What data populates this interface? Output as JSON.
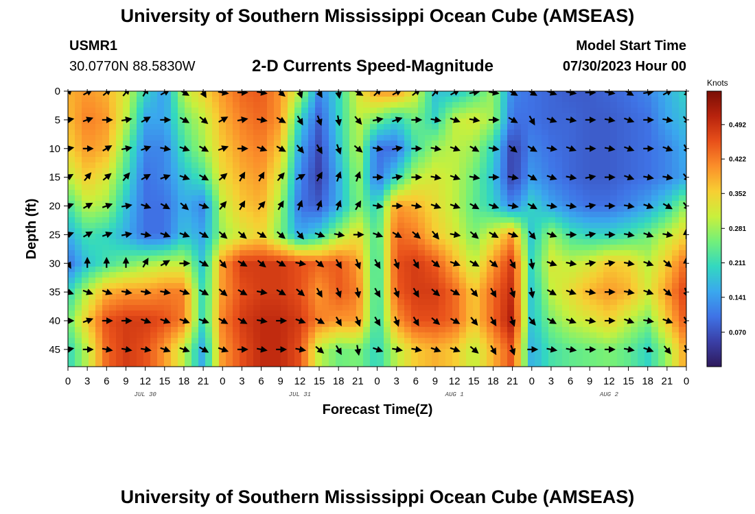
{
  "header": {
    "title": "University of Southern Mississippi Ocean Cube (AMSEAS)",
    "station": "USMR1",
    "coords": "30.0770N  88.5830W",
    "plot_name": "2-D Currents Speed-Magnitude",
    "model_start_label": "Model Start Time",
    "model_start_value": "07/30/2023 Hour 00"
  },
  "footer": {
    "title": "University of Southern Mississippi Ocean Cube (AMSEAS)"
  },
  "chart_data": {
    "type": "heatmap",
    "title": "2-D Currents Speed-Magnitude",
    "xlabel": "Forecast Time(Z)",
    "ylabel": "Depth (ft)",
    "x_range_hours": [
      0,
      96
    ],
    "y_range_ft": [
      0,
      48
    ],
    "y_reversed": true,
    "x_tick_hours": [
      0,
      3,
      6,
      9,
      12,
      15,
      18,
      21,
      24,
      27,
      30,
      33,
      36,
      39,
      42,
      45,
      48,
      51,
      54,
      57,
      60,
      63,
      66,
      69,
      72,
      75,
      78,
      81,
      84,
      87,
      90,
      93,
      96
    ],
    "x_tick_labels": [
      "0",
      "3",
      "6",
      "9",
      "12",
      "15",
      "18",
      "21",
      "0",
      "3",
      "6",
      "9",
      "12",
      "15",
      "18",
      "21",
      "0",
      "3",
      "6",
      "9",
      "12",
      "15",
      "18",
      "21",
      "0",
      "3",
      "6",
      "9",
      "12",
      "15",
      "18",
      "21",
      "0"
    ],
    "date_labels": [
      {
        "text": "JUL 30",
        "hour": 12
      },
      {
        "text": "JUL 31",
        "hour": 36
      },
      {
        "text": "AUG 1",
        "hour": 60
      },
      {
        "text": "AUG 2",
        "hour": 84
      }
    ],
    "y_ticks": [
      0,
      5,
      10,
      15,
      20,
      25,
      30,
      35,
      40,
      45
    ],
    "y_tick_labels": [
      "0",
      "5",
      "10",
      "15",
      "20",
      "25",
      "30",
      "35",
      "40",
      "45"
    ],
    "colorbar": {
      "unit": "Knots",
      "range": [
        0.0,
        0.56
      ],
      "tick_values": [
        0.07,
        0.141,
        0.211,
        0.281,
        0.352,
        0.422,
        0.492
      ],
      "tick_labels": [
        "0.070",
        "0.141",
        "0.211",
        "0.281",
        "0.352",
        "0.422",
        "0.492"
      ],
      "colors": [
        "#2e1a5c",
        "#3a3fa6",
        "#3f73e6",
        "#3aa8ee",
        "#33d8c0",
        "#73f07a",
        "#c9f03c",
        "#f7cf33",
        "#fb8f2a",
        "#e8501a",
        "#b8230d",
        "#7a0e05"
      ]
    },
    "hour_step": 3,
    "depth_levels_ft": [
      0,
      5,
      10,
      15,
      20,
      25,
      30,
      35,
      40,
      45
    ],
    "speed_knots": [
      [
        0.38,
        0.4,
        0.38,
        0.32,
        0.2,
        0.14,
        0.3,
        0.35,
        0.4,
        0.44,
        0.45,
        0.4,
        0.3,
        0.12,
        0.2,
        0.32,
        0.4,
        0.4,
        0.32,
        0.18,
        0.18,
        0.22,
        0.28,
        0.12,
        0.1,
        0.09,
        0.08,
        0.08,
        0.09,
        0.1,
        0.12,
        0.16,
        0.2
      ],
      [
        0.37,
        0.42,
        0.4,
        0.3,
        0.15,
        0.15,
        0.25,
        0.3,
        0.38,
        0.42,
        0.44,
        0.4,
        0.2,
        0.08,
        0.2,
        0.3,
        0.25,
        0.2,
        0.25,
        0.2,
        0.3,
        0.32,
        0.28,
        0.1,
        0.1,
        0.09,
        0.09,
        0.08,
        0.08,
        0.09,
        0.1,
        0.15,
        0.18
      ],
      [
        0.35,
        0.4,
        0.38,
        0.25,
        0.12,
        0.12,
        0.22,
        0.28,
        0.36,
        0.4,
        0.42,
        0.36,
        0.15,
        0.06,
        0.18,
        0.3,
        0.1,
        0.1,
        0.22,
        0.28,
        0.3,
        0.28,
        0.2,
        0.05,
        0.12,
        0.1,
        0.09,
        0.08,
        0.08,
        0.09,
        0.1,
        0.12,
        0.16
      ],
      [
        0.3,
        0.36,
        0.32,
        0.22,
        0.1,
        0.12,
        0.18,
        0.22,
        0.34,
        0.38,
        0.4,
        0.32,
        0.12,
        0.05,
        0.16,
        0.28,
        0.1,
        0.2,
        0.3,
        0.32,
        0.3,
        0.25,
        0.18,
        0.05,
        0.14,
        0.11,
        0.09,
        0.08,
        0.08,
        0.09,
        0.1,
        0.12,
        0.15
      ],
      [
        0.22,
        0.3,
        0.28,
        0.18,
        0.1,
        0.1,
        0.16,
        0.12,
        0.3,
        0.36,
        0.38,
        0.28,
        0.1,
        0.08,
        0.16,
        0.26,
        0.2,
        0.4,
        0.38,
        0.34,
        0.3,
        0.24,
        0.2,
        0.12,
        0.2,
        0.15,
        0.12,
        0.1,
        0.1,
        0.12,
        0.15,
        0.2,
        0.28
      ],
      [
        0.16,
        0.22,
        0.2,
        0.16,
        0.1,
        0.1,
        0.18,
        0.15,
        0.28,
        0.32,
        0.35,
        0.26,
        0.15,
        0.2,
        0.28,
        0.34,
        0.22,
        0.44,
        0.42,
        0.36,
        0.32,
        0.26,
        0.32,
        0.4,
        0.18,
        0.28,
        0.22,
        0.2,
        0.2,
        0.22,
        0.25,
        0.3,
        0.35
      ],
      [
        0.1,
        0.18,
        0.22,
        0.25,
        0.28,
        0.3,
        0.3,
        0.18,
        0.4,
        0.48,
        0.48,
        0.48,
        0.46,
        0.44,
        0.45,
        0.4,
        0.2,
        0.46,
        0.48,
        0.45,
        0.38,
        0.3,
        0.4,
        0.48,
        0.2,
        0.32,
        0.3,
        0.32,
        0.36,
        0.35,
        0.3,
        0.36,
        0.44
      ],
      [
        0.2,
        0.3,
        0.38,
        0.4,
        0.4,
        0.42,
        0.42,
        0.2,
        0.4,
        0.46,
        0.48,
        0.48,
        0.46,
        0.4,
        0.45,
        0.42,
        0.2,
        0.45,
        0.48,
        0.48,
        0.44,
        0.36,
        0.44,
        0.5,
        0.18,
        0.3,
        0.34,
        0.38,
        0.4,
        0.38,
        0.32,
        0.4,
        0.48
      ],
      [
        0.25,
        0.36,
        0.46,
        0.48,
        0.48,
        0.46,
        0.42,
        0.2,
        0.42,
        0.48,
        0.5,
        0.5,
        0.48,
        0.42,
        0.4,
        0.4,
        0.2,
        0.4,
        0.46,
        0.46,
        0.44,
        0.36,
        0.44,
        0.52,
        0.18,
        0.26,
        0.3,
        0.32,
        0.35,
        0.3,
        0.26,
        0.36,
        0.46
      ],
      [
        0.2,
        0.3,
        0.44,
        0.48,
        0.46,
        0.4,
        0.3,
        0.15,
        0.4,
        0.46,
        0.5,
        0.5,
        0.46,
        0.3,
        0.25,
        0.26,
        0.2,
        0.3,
        0.36,
        0.38,
        0.36,
        0.3,
        0.38,
        0.46,
        0.16,
        0.22,
        0.24,
        0.25,
        0.26,
        0.24,
        0.2,
        0.28,
        0.4
      ]
    ],
    "vector_direction_deg": [
      [
        45,
        60,
        50,
        40,
        30,
        60,
        120,
        150,
        100,
        90,
        100,
        130,
        160,
        150,
        170,
        120,
        45,
        60,
        50,
        40,
        60,
        80,
        100,
        120,
        120,
        110,
        100,
        90,
        100,
        120,
        80,
        60,
        140
      ],
      [
        80,
        70,
        90,
        80,
        60,
        90,
        120,
        130,
        60,
        80,
        100,
        120,
        150,
        160,
        170,
        140,
        80,
        70,
        90,
        100,
        110,
        100,
        90,
        120,
        150,
        110,
        100,
        90,
        100,
        110,
        90,
        100,
        140
      ],
      [
        80,
        90,
        60,
        80,
        70,
        100,
        110,
        120,
        70,
        90,
        110,
        120,
        140,
        150,
        160,
        130,
        100,
        80,
        90,
        100,
        110,
        120,
        100,
        130,
        120,
        100,
        110,
        90,
        100,
        110,
        90,
        110,
        150
      ],
      [
        60,
        40,
        50,
        40,
        60,
        70,
        110,
        120,
        50,
        30,
        30,
        40,
        60,
        30,
        20,
        20,
        90,
        80,
        90,
        100,
        110,
        100,
        90,
        100,
        120,
        110,
        100,
        80,
        90,
        110,
        100,
        100,
        140
      ],
      [
        70,
        60,
        70,
        80,
        110,
        120,
        130,
        110,
        40,
        30,
        40,
        30,
        20,
        20,
        20,
        30,
        100,
        90,
        100,
        110,
        110,
        120,
        110,
        100,
        120,
        100,
        100,
        80,
        90,
        100,
        110,
        120,
        140
      ],
      [
        70,
        60,
        70,
        80,
        100,
        110,
        110,
        120,
        130,
        130,
        120,
        130,
        140,
        110,
        100,
        90,
        110,
        120,
        130,
        140,
        100,
        130,
        120,
        110,
        140,
        110,
        90,
        80,
        90,
        100,
        110,
        100,
        0
      ],
      [
        150,
        0,
        0,
        0,
        30,
        60,
        90,
        120,
        140,
        120,
        130,
        120,
        100,
        130,
        150,
        160,
        150,
        160,
        150,
        130,
        110,
        120,
        130,
        150,
        170,
        110,
        100,
        80,
        80,
        100,
        110,
        130,
        0
      ],
      [
        110,
        110,
        110,
        100,
        100,
        100,
        110,
        120,
        130,
        120,
        100,
        120,
        130,
        150,
        160,
        170,
        150,
        160,
        150,
        130,
        120,
        140,
        150,
        160,
        170,
        120,
        110,
        100,
        90,
        100,
        110,
        130,
        160
      ],
      [
        90,
        70,
        90,
        90,
        110,
        110,
        110,
        110,
        120,
        120,
        100,
        90,
        110,
        120,
        150,
        160,
        150,
        160,
        150,
        130,
        120,
        140,
        150,
        160,
        140,
        120,
        110,
        100,
        90,
        110,
        100,
        110,
        150
      ],
      [
        80,
        90,
        100,
        100,
        100,
        110,
        110,
        120,
        110,
        90,
        100,
        90,
        100,
        130,
        150,
        170,
        110,
        100,
        100,
        110,
        110,
        130,
        150,
        160,
        90,
        100,
        100,
        90,
        90,
        100,
        110,
        140,
        160
      ]
    ]
  }
}
